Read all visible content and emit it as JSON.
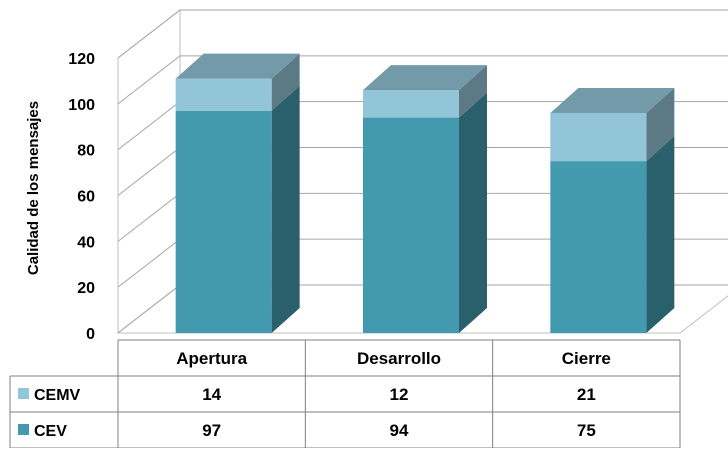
{
  "chart_data": {
    "type": "bar",
    "stacked": true,
    "three_d": true,
    "categories": [
      "Apertura",
      "Desarrollo",
      "Cierre"
    ],
    "series": [
      {
        "name": "CEV",
        "values": [
          97,
          94,
          75
        ],
        "color": "#4399ae"
      },
      {
        "name": "CEMV",
        "values": [
          14,
          12,
          21
        ],
        "color": "#92c5d8"
      }
    ],
    "ylabel": "Calidad de los mensajes",
    "ylim": [
      0,
      120
    ],
    "yticks": [
      0,
      20,
      40,
      60,
      80,
      100,
      120
    ],
    "grid": true,
    "legend": "data-table",
    "data_table": true
  }
}
